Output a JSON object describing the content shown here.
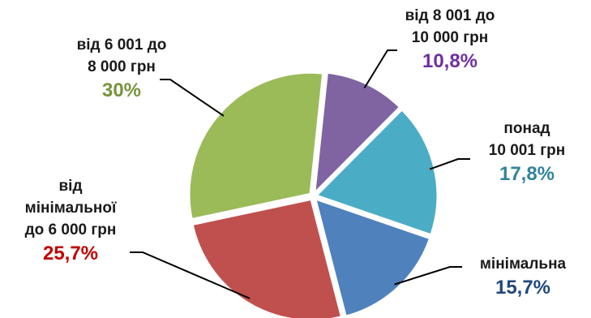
{
  "chart_data": {
    "type": "pie",
    "title": "",
    "slices": [
      {
        "label_lines": [
          "від 8 001 до",
          "10 000 грн"
        ],
        "value_label": "10,8%",
        "value": 10.8,
        "color": "#8064a2"
      },
      {
        "label_lines": [
          "понад",
          "10 001 грн"
        ],
        "value_label": "17,8%",
        "value": 17.8,
        "color": "#4bacc6"
      },
      {
        "label_lines": [
          "мінімальна"
        ],
        "value_label": "15,7%",
        "value": 15.7,
        "color": "#4f81bd"
      },
      {
        "label_lines": [
          "від",
          "мінімальної",
          "до 6 000 грн"
        ],
        "value_label": "25,7%",
        "value": 25.7,
        "color": "#c0504d"
      },
      {
        "label_lines": [
          "від 6 001 до",
          "8 000 грн"
        ],
        "value_label": "30%",
        "value": 30.0,
        "color": "#9bbb59"
      }
    ],
    "label_colors": [
      "#7030a0",
      "#31849b",
      "#1f497d",
      "#c00000",
      "#77933c"
    ],
    "legend": "none"
  }
}
